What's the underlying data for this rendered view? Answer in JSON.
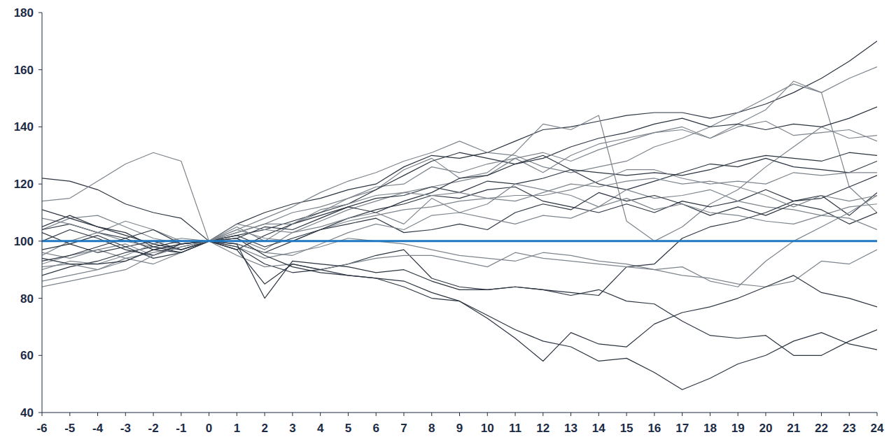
{
  "chart_data": {
    "type": "line",
    "x": [
      -6,
      -5,
      -4,
      -3,
      -2,
      -1,
      0,
      1,
      2,
      3,
      4,
      5,
      6,
      7,
      8,
      9,
      10,
      11,
      12,
      13,
      14,
      15,
      16,
      17,
      18,
      19,
      20,
      21,
      22,
      23,
      24
    ],
    "xlim": [
      -6,
      24
    ],
    "xticks": [
      -6,
      -5,
      -4,
      -3,
      -2,
      -1,
      0,
      1,
      2,
      3,
      4,
      5,
      6,
      7,
      8,
      9,
      10,
      11,
      12,
      13,
      14,
      15,
      16,
      17,
      18,
      19,
      20,
      21,
      22,
      23,
      24
    ],
    "ylim": [
      40,
      180
    ],
    "yticks": [
      40,
      60,
      80,
      100,
      120,
      140,
      160,
      180
    ],
    "grid": false,
    "series": [
      {
        "color": "#2b3440",
        "values": [
          122,
          121,
          118,
          113,
          110,
          108,
          100,
          106,
          110,
          113,
          115,
          118,
          120,
          126,
          130,
          129,
          131,
          135,
          139,
          140,
          142,
          144,
          145,
          145,
          143,
          145,
          148,
          152,
          157,
          163,
          170
        ]
      },
      {
        "color": "#7d848c",
        "values": [
          114,
          115,
          121,
          127,
          131,
          128,
          100,
          104,
          108,
          112,
          117,
          121,
          124,
          128,
          131,
          135,
          131,
          130,
          126,
          124,
          126,
          128,
          133,
          136,
          140,
          145,
          150,
          155,
          152,
          157,
          161
        ]
      },
      {
        "color": "#7d848c",
        "values": [
          104,
          108,
          109,
          105,
          101,
          99,
          100,
          103,
          106,
          110,
          112,
          115,
          119,
          120,
          126,
          124,
          127,
          129,
          124,
          130,
          134,
          136,
          138,
          140,
          136,
          141,
          146,
          156,
          152,
          119,
          110
        ]
      },
      {
        "color": "#7d848c",
        "values": [
          92,
          95,
          97,
          94,
          96,
          98,
          100,
          105,
          100,
          106,
          110,
          115,
          118,
          125,
          129,
          122,
          124,
          131,
          141,
          139,
          144,
          107,
          100,
          105,
          113,
          118,
          126,
          133,
          140,
          136,
          137
        ]
      },
      {
        "color": "#2b3440",
        "values": [
          104,
          106,
          103,
          101,
          97,
          96,
          100,
          102,
          104,
          107,
          110,
          113,
          118,
          123,
          128,
          131,
          129,
          127,
          129,
          133,
          136,
          138,
          141,
          143,
          140,
          141,
          139,
          141,
          140,
          143,
          147
        ]
      },
      {
        "color": "#7d848c",
        "values": [
          95,
          100,
          103,
          107,
          104,
          100,
          100,
          101,
          97,
          103,
          107,
          111,
          114,
          117,
          119,
          121,
          123,
          129,
          131,
          128,
          132,
          135,
          138,
          139,
          136,
          140,
          142,
          137,
          138,
          139,
          135
        ]
      },
      {
        "color": "#2b3440",
        "values": [
          97,
          99,
          102,
          98,
          94,
          96,
          100,
          101,
          105,
          104,
          108,
          112,
          115,
          116,
          119,
          117,
          121,
          120,
          122,
          125,
          124,
          123,
          124,
          123,
          125,
          128,
          130,
          129,
          128,
          131,
          130
        ]
      },
      {
        "color": "#2b3440",
        "values": [
          88,
          91,
          93,
          96,
          98,
          100,
          100,
          97,
          102,
          106,
          109,
          112,
          110,
          114,
          117,
          122,
          123,
          127,
          130,
          125,
          120,
          118,
          121,
          124,
          127,
          126,
          129,
          126,
          125,
          124,
          128
        ]
      },
      {
        "color": "#7d848c",
        "values": [
          108,
          106,
          103,
          100,
          98,
          97,
          100,
          104,
          101,
          100,
          104,
          107,
          109,
          111,
          112,
          114,
          115,
          116,
          116,
          118,
          121,
          125,
          125,
          122,
          120,
          121,
          120,
          124,
          123,
          124,
          124
        ]
      },
      {
        "color": "#2b3440",
        "values": [
          103,
          99,
          96,
          98,
          100,
          97,
          100,
          99,
          96,
          100,
          104,
          108,
          111,
          113,
          116,
          115,
          118,
          119,
          114,
          112,
          110,
          113,
          110,
          114,
          112,
          114,
          118,
          114,
          116,
          109,
          117
        ]
      },
      {
        "color": "#7d848c",
        "values": [
          96,
          94,
          97,
          99,
          95,
          98,
          100,
          106,
          104,
          103,
          105,
          108,
          110,
          106,
          115,
          110,
          113,
          120,
          118,
          116,
          112,
          118,
          115,
          116,
          118,
          114,
          112,
          111,
          109,
          112,
          113
        ]
      },
      {
        "color": "#2b3440",
        "values": [
          93,
          95,
          98,
          101,
          104,
          99,
          100,
          102,
          98,
          101,
          104,
          106,
          108,
          103,
          104,
          106,
          104,
          110,
          113,
          111,
          117,
          114,
          116,
          113,
          109,
          112,
          109,
          113,
          111,
          106,
          110
        ]
      },
      {
        "color": "#7d848c",
        "values": [
          86,
          88,
          90,
          93,
          97,
          99,
          100,
          99,
          96,
          95,
          99,
          103,
          106,
          104,
          109,
          110,
          108,
          106,
          109,
          108,
          112,
          115,
          111,
          113,
          110,
          109,
          107,
          106,
          109,
          108,
          104
        ]
      },
      {
        "color": "#7d848c",
        "values": [
          90,
          93,
          92,
          95,
          99,
          101,
          100,
          98,
          94,
          96,
          98,
          101,
          100,
          99,
          97,
          95,
          94,
          93,
          96,
          95,
          93,
          92,
          90,
          88,
          87,
          85,
          84,
          86,
          93,
          92,
          97
        ]
      },
      {
        "color": "#2b3440",
        "values": [
          100,
          104,
          101,
          97,
          95,
          99,
          100,
          98,
          92,
          89,
          90,
          92,
          95,
          97,
          87,
          84,
          83,
          84,
          83,
          82,
          81,
          91,
          92,
          101,
          105,
          107,
          110,
          114,
          115,
          119,
          123
        ]
      },
      {
        "color": "#7d848c",
        "values": [
          91,
          92,
          90,
          94,
          92,
          96,
          100,
          95,
          91,
          92,
          90,
          92,
          94,
          95,
          95,
          93,
          91,
          96,
          94,
          93,
          92,
          91,
          90,
          91,
          86,
          84,
          93,
          100,
          105,
          110,
          116
        ]
      },
      {
        "color": "#2b3440",
        "values": [
          111,
          108,
          105,
          102,
          99,
          97,
          100,
          97,
          85,
          92,
          90,
          88,
          87,
          86,
          82,
          79,
          73,
          66,
          58,
          68,
          64,
          63,
          71,
          75,
          77,
          80,
          84,
          88,
          82,
          80,
          77
        ]
      },
      {
        "color": "#2b3440",
        "values": [
          105,
          109,
          105,
          103,
          98,
          96,
          100,
          101,
          95,
          91,
          89,
          88,
          87,
          84,
          80,
          79,
          74,
          69,
          65,
          63,
          58,
          59,
          54,
          48,
          52,
          57,
          60,
          65,
          68,
          64,
          62
        ]
      },
      {
        "color": "#2b3440",
        "values": [
          94,
          92,
          92,
          93,
          97,
          99,
          100,
          99,
          80,
          93,
          92,
          91,
          89,
          90,
          86,
          83,
          83,
          84,
          83,
          81,
          83,
          79,
          78,
          72,
          67,
          66,
          67,
          60,
          60,
          65,
          69
        ]
      },
      {
        "color": "#7d848c",
        "values": [
          84,
          86,
          88,
          90,
          95,
          98,
          100,
          103,
          106,
          106,
          111,
          113,
          116,
          117,
          116,
          117,
          115,
          114,
          117,
          120,
          119,
          121,
          122,
          120,
          121,
          119,
          116,
          112,
          116,
          114,
          116
        ]
      },
      {
        "color": "#1f78c1",
        "values": [
          100,
          100,
          100,
          100,
          100,
          100,
          100,
          100,
          100,
          100,
          100,
          100,
          100,
          100,
          100,
          100,
          100,
          100,
          100,
          100,
          100,
          100,
          100,
          100,
          100,
          100,
          100,
          100,
          100,
          100,
          100
        ]
      }
    ]
  }
}
